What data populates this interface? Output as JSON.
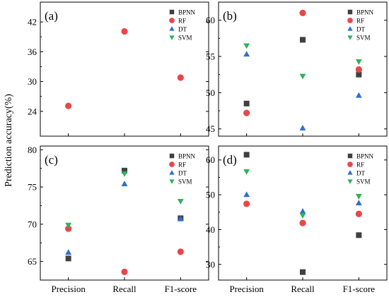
{
  "figure": {
    "ylabel": "Prediction accuracy(%)",
    "categories": [
      "Precision",
      "Recall",
      "F1-score"
    ]
  },
  "legend_entries": [
    "BPNN",
    "RF",
    "DT",
    "SVM"
  ],
  "series_styles": {
    "BPNN": {
      "marker": "square",
      "color": "#404040"
    },
    "RF": {
      "marker": "circle",
      "color": "#e8474a"
    },
    "DT": {
      "marker": "triangle-up",
      "color": "#2f6fce"
    },
    "SVM": {
      "marker": "triangle-down",
      "color": "#2db35a"
    }
  },
  "chart_data": [
    {
      "type": "scatter",
      "panel_label": "(a)",
      "categories": [
        "Precision",
        "Recall",
        "F1-score"
      ],
      "ylim": [
        19,
        46
      ],
      "yticks": [
        24,
        30,
        36,
        42
      ],
      "legend": "top-right",
      "grid": false,
      "series": [
        {
          "name": "BPNN",
          "values": [
            null,
            null,
            null
          ]
        },
        {
          "name": "RF",
          "values": [
            25.1,
            40.1,
            30.8
          ]
        },
        {
          "name": "DT",
          "values": [
            null,
            null,
            null
          ]
        },
        {
          "name": "SVM",
          "values": [
            null,
            null,
            null
          ]
        }
      ]
    },
    {
      "type": "scatter",
      "panel_label": "(b)",
      "categories": [
        "Precision",
        "Recall",
        "F1-score"
      ],
      "ylim": [
        44,
        62.5
      ],
      "yticks": [
        45,
        50,
        55,
        60
      ],
      "legend": "top-right",
      "grid": false,
      "series": [
        {
          "name": "BPNN",
          "values": [
            48.5,
            57.3,
            52.5
          ]
        },
        {
          "name": "RF",
          "values": [
            47.2,
            61.0,
            53.2
          ]
        },
        {
          "name": "DT",
          "values": [
            55.3,
            45.1,
            49.6
          ]
        },
        {
          "name": "SVM",
          "values": [
            56.5,
            52.3,
            54.3
          ]
        }
      ]
    },
    {
      "type": "scatter",
      "panel_label": "(c)",
      "categories": [
        "Precision",
        "Recall",
        "F1-score"
      ],
      "ylim": [
        62.5,
        80.5
      ],
      "yticks": [
        65,
        70,
        75,
        80
      ],
      "legend": "top-right",
      "grid": false,
      "series": [
        {
          "name": "BPNN",
          "values": [
            65.4,
            77.2,
            70.8
          ]
        },
        {
          "name": "RF",
          "values": [
            69.4,
            63.6,
            66.3
          ]
        },
        {
          "name": "DT",
          "values": [
            66.2,
            75.4,
            70.7
          ]
        },
        {
          "name": "SVM",
          "values": [
            69.9,
            76.8,
            73.1
          ]
        }
      ]
    },
    {
      "type": "scatter",
      "panel_label": "(d)",
      "categories": [
        "Precision",
        "Recall",
        "F1-score"
      ],
      "ylim": [
        25.5,
        64
      ],
      "yticks": [
        30,
        40,
        50,
        60
      ],
      "legend": "top-right",
      "grid": false,
      "series": [
        {
          "name": "BPNN",
          "values": [
            61.5,
            27.8,
            38.4
          ]
        },
        {
          "name": "RF",
          "values": [
            47.4,
            41.9,
            44.5
          ]
        },
        {
          "name": "DT",
          "values": [
            50.0,
            45.2,
            47.6
          ]
        },
        {
          "name": "SVM",
          "values": [
            56.7,
            44.1,
            49.6
          ]
        }
      ]
    }
  ]
}
